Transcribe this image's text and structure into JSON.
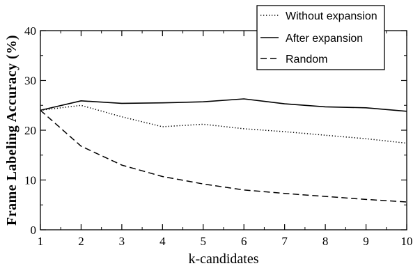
{
  "chart_data": {
    "type": "line",
    "x": [
      1,
      2,
      3,
      4,
      5,
      6,
      7,
      8,
      9,
      10
    ],
    "xlim": [
      1,
      10
    ],
    "ylim": [
      0,
      40
    ],
    "xticks": [
      "1",
      "2",
      "3",
      "4",
      "5",
      "6",
      "7",
      "8",
      "9",
      "10"
    ],
    "yticks": [
      "0",
      "10",
      "20",
      "30",
      "40"
    ],
    "xlabel": "k-candidates",
    "ylabel": "Frame Labeling Accuracy (%)",
    "legend_position": "top-right",
    "grid": false,
    "series": [
      {
        "name": "Without expansion",
        "style": "dotted",
        "color": "#000000",
        "values": [
          24.0,
          25.0,
          22.7,
          20.7,
          21.2,
          20.3,
          19.7,
          19.0,
          18.3,
          17.4
        ]
      },
      {
        "name": "After expansion",
        "style": "solid",
        "color": "#000000",
        "values": [
          24.0,
          25.9,
          25.4,
          25.5,
          25.7,
          26.3,
          25.3,
          24.7,
          24.5,
          23.8
        ]
      },
      {
        "name": "Random",
        "style": "dashed",
        "color": "#000000",
        "values": [
          24.0,
          16.8,
          13.0,
          10.7,
          9.2,
          8.0,
          7.3,
          6.7,
          6.1,
          5.6
        ]
      }
    ]
  }
}
